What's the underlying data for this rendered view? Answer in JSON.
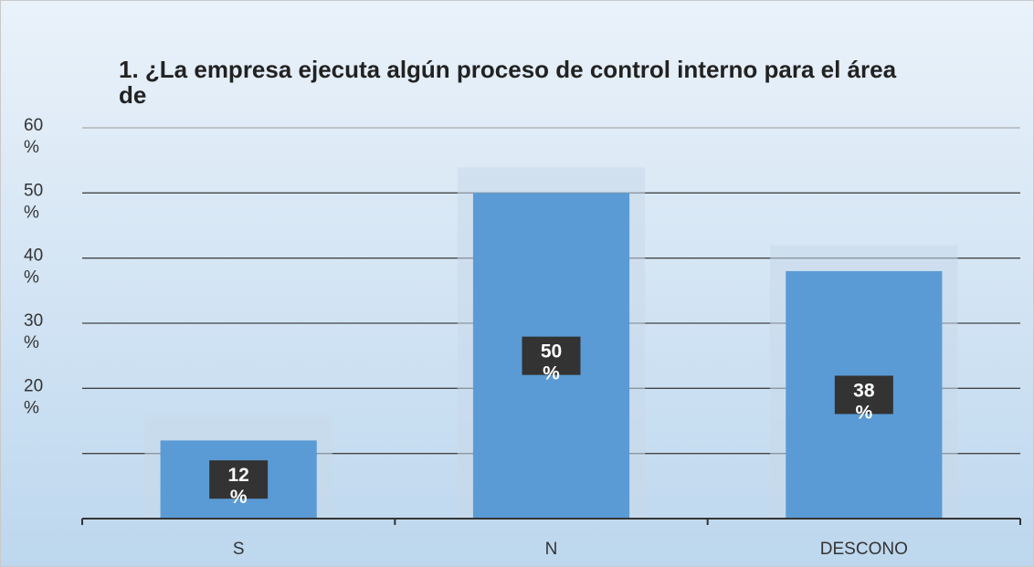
{
  "chart_data": {
    "type": "bar",
    "title": "1. ¿La empresa ejecuta algún proceso de control interno para el área de",
    "categories": [
      "S",
      "N",
      "DESCONO"
    ],
    "values": [
      12,
      50,
      38
    ],
    "value_labels": [
      "12 %",
      "50 %",
      "38 %"
    ],
    "color": "#5b9bd5",
    "ylim": [
      0,
      60
    ],
    "yticks": [
      {
        "value": 10,
        "label": null
      },
      {
        "value": 20,
        "label": "20 %"
      },
      {
        "value": 30,
        "label": "30 %"
      },
      {
        "value": 40,
        "label": "40 %"
      },
      {
        "value": 50,
        "label": "50 %"
      },
      {
        "value": 60,
        "label": "60 %"
      }
    ],
    "grid": true
  }
}
